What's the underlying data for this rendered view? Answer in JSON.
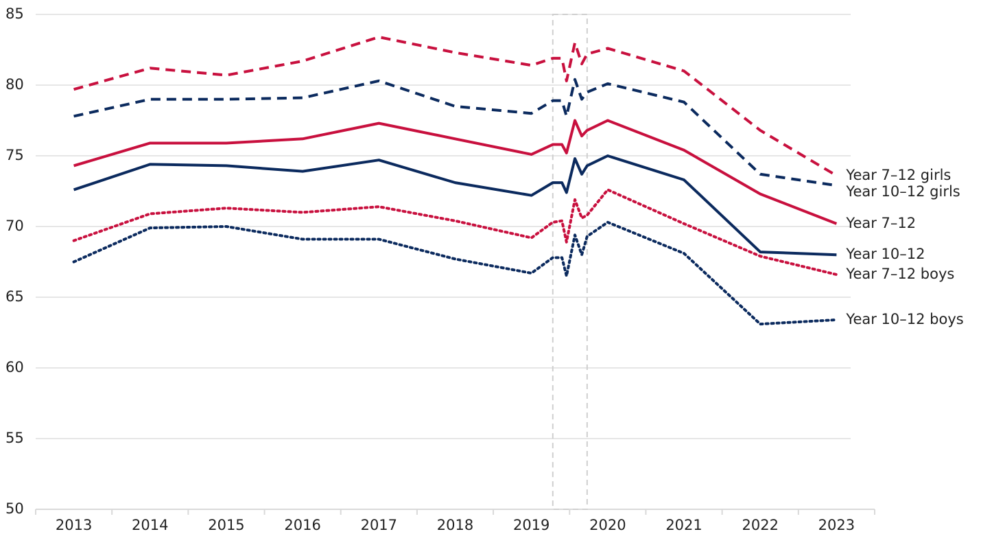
{
  "chart_data": {
    "type": "line",
    "x": [
      2013,
      2014,
      2015,
      2016,
      2017,
      2018,
      2019,
      2019.28,
      2019.4,
      2019.46,
      2019.57,
      2019.66,
      2019.73,
      2020,
      2021,
      2022,
      2023
    ],
    "series": [
      {
        "name": "Year 7–12 girls",
        "color": "#c8103e",
        "dash": "dashed",
        "values": [
          79.7,
          81.2,
          80.7,
          81.7,
          83.4,
          82.3,
          81.4,
          81.9,
          81.9,
          80.3,
          83.0,
          81.5,
          82.2,
          82.6,
          81.0,
          76.8,
          73.6
        ]
      },
      {
        "name": "Year 10–12 girls",
        "color": "#0b2a5e",
        "dash": "dashed",
        "values": [
          77.8,
          79.0,
          79.0,
          79.1,
          80.3,
          78.5,
          78.0,
          78.9,
          78.9,
          77.8,
          80.4,
          79.0,
          79.5,
          80.1,
          78.8,
          73.7,
          72.9
        ]
      },
      {
        "name": "Year 7–12",
        "color": "#c8103e",
        "dash": "solid",
        "values": [
          74.3,
          75.9,
          75.9,
          76.2,
          77.3,
          76.2,
          75.1,
          75.8,
          75.8,
          75.2,
          77.5,
          76.4,
          76.8,
          77.5,
          75.4,
          72.3,
          70.2
        ]
      },
      {
        "name": "Year 10–12",
        "color": "#0b2a5e",
        "dash": "solid",
        "values": [
          72.6,
          74.4,
          74.3,
          73.9,
          74.7,
          73.1,
          72.2,
          73.1,
          73.1,
          72.4,
          74.8,
          73.7,
          74.3,
          75.0,
          73.3,
          68.2,
          68.0
        ]
      },
      {
        "name": "Year 7–12 boys",
        "color": "#c8103e",
        "dash": "dotted",
        "values": [
          69.0,
          70.9,
          71.3,
          71.0,
          71.4,
          70.4,
          69.2,
          70.3,
          70.4,
          68.9,
          71.9,
          70.6,
          70.8,
          72.6,
          70.2,
          67.9,
          66.6
        ]
      },
      {
        "name": "Year 10–12 boys",
        "color": "#0b2a5e",
        "dash": "dotted",
        "values": [
          67.5,
          69.9,
          70.0,
          69.1,
          69.1,
          67.7,
          66.7,
          67.8,
          67.8,
          66.5,
          69.4,
          68.0,
          69.3,
          70.3,
          68.1,
          63.1,
          63.4
        ]
      }
    ],
    "xlim": [
      2012.5,
      2023.5
    ],
    "xticks": [
      2013,
      2014,
      2015,
      2016,
      2017,
      2018,
      2019,
      2020,
      2021,
      2022,
      2023
    ],
    "ylim": [
      50,
      85
    ],
    "yticks": [
      50,
      55,
      60,
      65,
      70,
      75,
      80,
      85
    ],
    "grid": true,
    "highlight_xrange": [
      2019.28,
      2019.73
    ]
  }
}
